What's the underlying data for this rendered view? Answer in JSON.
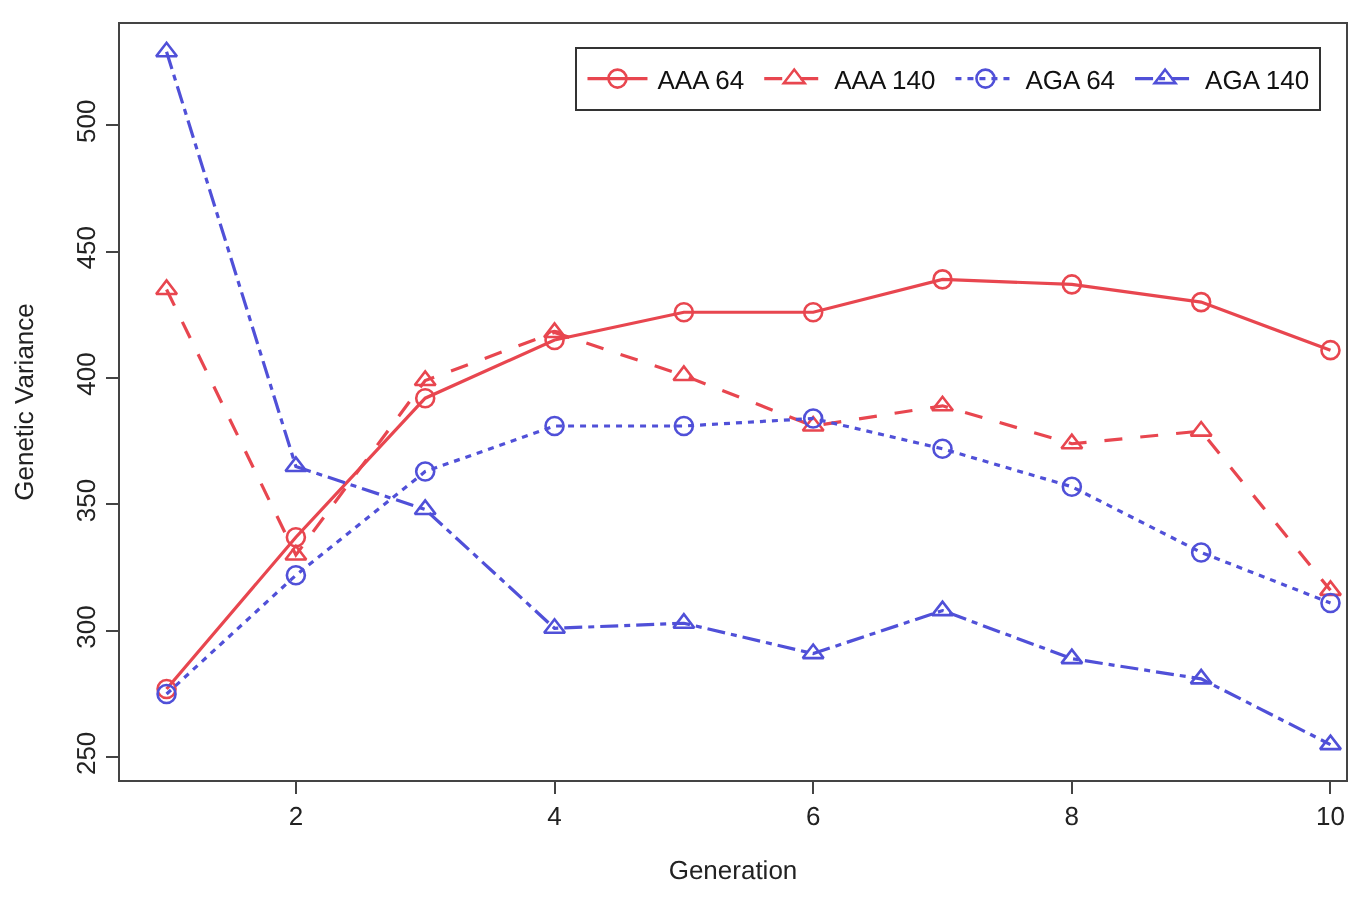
{
  "chart_data": {
    "type": "line",
    "xlabel": "Generation",
    "ylabel": "Genetic Variance",
    "x": [
      1,
      2,
      3,
      4,
      5,
      6,
      7,
      8,
      9,
      10
    ],
    "xlim": [
      0.64,
      10.12
    ],
    "xticks": [
      2,
      4,
      6,
      8,
      10
    ],
    "ylim": [
      241,
      540
    ],
    "yticks": [
      250,
      300,
      350,
      400,
      450,
      500
    ],
    "legend": "top right",
    "series": [
      {
        "name": "AAA 64",
        "color": "#e8464f",
        "marker": "circle",
        "line_style": "solid",
        "values": [
          277,
          337,
          392,
          415,
          426,
          426,
          439,
          437,
          430,
          411
        ]
      },
      {
        "name": "AAA 140",
        "color": "#e8464f",
        "marker": "triangle",
        "line_style": "dashed",
        "values": [
          435,
          330,
          399,
          418,
          401,
          381,
          389,
          374,
          379,
          316
        ]
      },
      {
        "name": "AGA 64",
        "color": "#5050d8",
        "marker": "circle",
        "line_style": "dotted",
        "values": [
          275,
          322,
          363,
          381,
          381,
          384,
          372,
          357,
          331,
          311
        ]
      },
      {
        "name": "AGA 140",
        "color": "#5050d8",
        "marker": "triangle",
        "line_style": "dashdot",
        "values": [
          529,
          365,
          348,
          301,
          303,
          291,
          308,
          289,
          281,
          255
        ]
      }
    ]
  }
}
